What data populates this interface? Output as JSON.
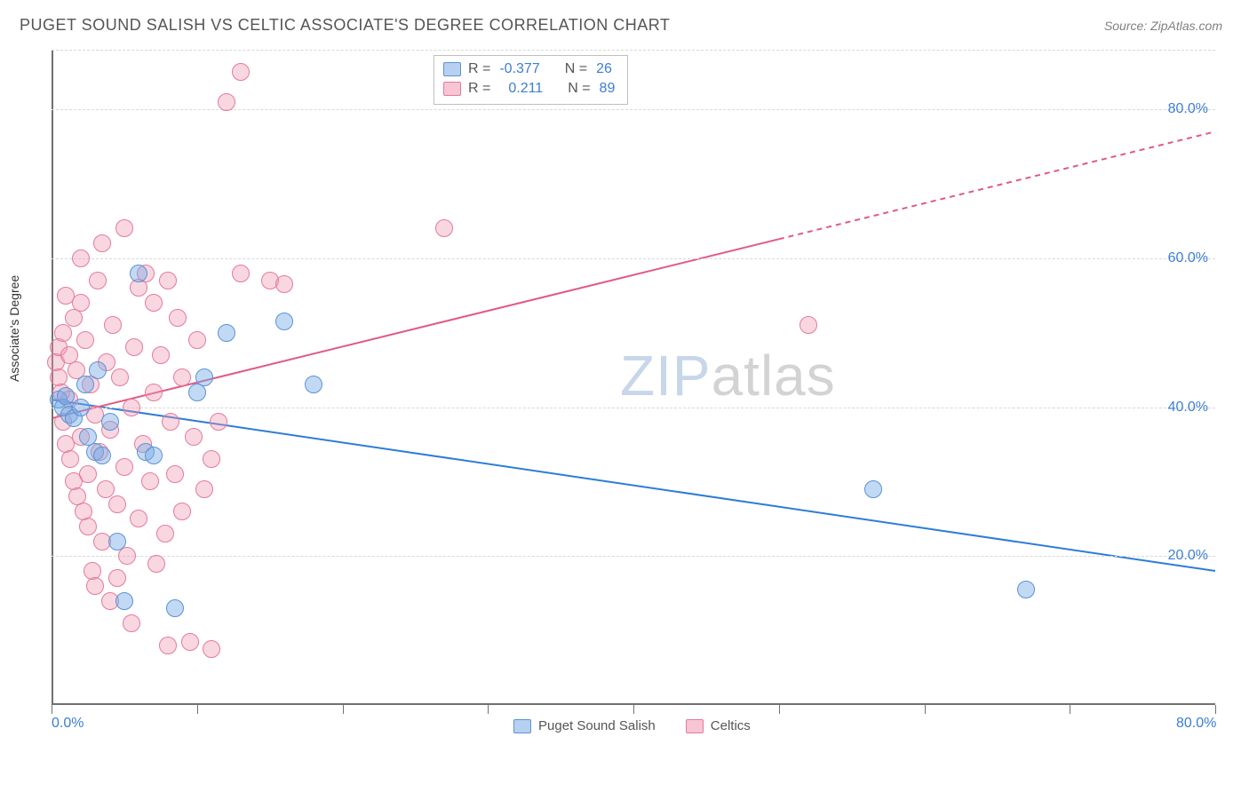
{
  "header": {
    "title": "PUGET SOUND SALISH VS CELTIC ASSOCIATE'S DEGREE CORRELATION CHART",
    "source": "Source: ZipAtlas.com"
  },
  "chart": {
    "type": "scatter",
    "ylabel": "Associate's Degree",
    "background_color": "#ffffff",
    "grid_color": "#d8d8d8",
    "axis_color": "#707070",
    "tick_label_color": "#3b7dd8",
    "xlim": [
      0,
      80
    ],
    "ylim": [
      0,
      88
    ],
    "x_ticks": [
      0,
      10,
      20,
      30,
      40,
      50,
      60,
      70,
      80
    ],
    "x_tick_labels": {
      "0": "0.0%",
      "80": "80.0%"
    },
    "y_grid_at": [
      20,
      40,
      60,
      80,
      88
    ],
    "y_tick_labels": {
      "20": "20.0%",
      "40": "40.0%",
      "60": "60.0%",
      "80": "80.0%"
    },
    "marker_radius": 10,
    "watermark": {
      "zip": "ZIP",
      "atlas": "atlas"
    },
    "series": {
      "blue": {
        "name": "Puget Sound Salish",
        "fill": "rgba(120,170,230,0.45)",
        "stroke": "#5a93d6",
        "R": "-0.377",
        "N": "26",
        "points": [
          [
            0.5,
            41
          ],
          [
            0.8,
            40
          ],
          [
            1.0,
            41.5
          ],
          [
            1.2,
            39
          ],
          [
            1.5,
            38.5
          ],
          [
            2.0,
            40
          ],
          [
            2.3,
            43
          ],
          [
            2.5,
            36
          ],
          [
            3.0,
            34
          ],
          [
            3.2,
            45
          ],
          [
            3.5,
            33.5
          ],
          [
            4.0,
            38
          ],
          [
            4.5,
            22
          ],
          [
            5.0,
            14
          ],
          [
            6.0,
            58
          ],
          [
            6.5,
            34
          ],
          [
            7.0,
            33.5
          ],
          [
            8.5,
            13
          ],
          [
            10.0,
            42
          ],
          [
            10.5,
            44
          ],
          [
            12.0,
            50
          ],
          [
            16.0,
            51.5
          ],
          [
            18.0,
            43
          ],
          [
            56.5,
            29
          ],
          [
            67.0,
            15.5
          ]
        ],
        "trend": {
          "x1": 0,
          "y1": 41,
          "x2": 80,
          "y2": 18,
          "color": "#2e7cd6",
          "width": 2,
          "dash": false
        }
      },
      "pink": {
        "name": "Celtics",
        "fill": "rgba(240,150,175,0.38)",
        "stroke": "#e57a9b",
        "R": "0.211",
        "N": "89",
        "points": [
          [
            0.3,
            46
          ],
          [
            0.5,
            48
          ],
          [
            0.5,
            44
          ],
          [
            0.7,
            42
          ],
          [
            0.8,
            50
          ],
          [
            0.8,
            38
          ],
          [
            1.0,
            55
          ],
          [
            1.0,
            35
          ],
          [
            1.2,
            47
          ],
          [
            1.2,
            41
          ],
          [
            1.3,
            33
          ],
          [
            1.5,
            52
          ],
          [
            1.5,
            30
          ],
          [
            1.7,
            45
          ],
          [
            1.8,
            28
          ],
          [
            2.0,
            54
          ],
          [
            2.0,
            36
          ],
          [
            2.0,
            60
          ],
          [
            2.2,
            26
          ],
          [
            2.3,
            49
          ],
          [
            2.5,
            24
          ],
          [
            2.5,
            31
          ],
          [
            2.7,
            43
          ],
          [
            2.8,
            18
          ],
          [
            3.0,
            16
          ],
          [
            3.0,
            39
          ],
          [
            3.2,
            57
          ],
          [
            3.3,
            34
          ],
          [
            3.5,
            22
          ],
          [
            3.5,
            62
          ],
          [
            3.7,
            29
          ],
          [
            3.8,
            46
          ],
          [
            4.0,
            37
          ],
          [
            4.0,
            14
          ],
          [
            4.2,
            51
          ],
          [
            4.5,
            27
          ],
          [
            4.5,
            17
          ],
          [
            4.7,
            44
          ],
          [
            5.0,
            64
          ],
          [
            5.0,
            32
          ],
          [
            5.2,
            20
          ],
          [
            5.5,
            11
          ],
          [
            5.5,
            40
          ],
          [
            5.7,
            48
          ],
          [
            6.0,
            56
          ],
          [
            6.0,
            25
          ],
          [
            6.3,
            35
          ],
          [
            6.5,
            58
          ],
          [
            6.8,
            30
          ],
          [
            7.0,
            54
          ],
          [
            7.0,
            42
          ],
          [
            7.2,
            19
          ],
          [
            7.5,
            47
          ],
          [
            7.8,
            23
          ],
          [
            8.0,
            57
          ],
          [
            8.0,
            8
          ],
          [
            8.2,
            38
          ],
          [
            8.5,
            31
          ],
          [
            8.7,
            52
          ],
          [
            9.0,
            44
          ],
          [
            9.0,
            26
          ],
          [
            9.5,
            8.5
          ],
          [
            9.8,
            36
          ],
          [
            10.0,
            49
          ],
          [
            10.5,
            29
          ],
          [
            11.0,
            33
          ],
          [
            11.0,
            7.5
          ],
          [
            11.5,
            38
          ],
          [
            12.0,
            81
          ],
          [
            13.0,
            85
          ],
          [
            13.0,
            58
          ],
          [
            15.0,
            57
          ],
          [
            16.0,
            56.5
          ],
          [
            27.0,
            64
          ],
          [
            52.0,
            51
          ]
        ],
        "trend": {
          "x1": 0,
          "y1": 38.5,
          "x2": 80,
          "y2": 77,
          "color": "#e05a85",
          "width": 2,
          "dash_after_x": 50
        }
      }
    },
    "legend_top": {
      "rows": [
        {
          "swatch": "blue",
          "r_lbl": "R =",
          "r_val": "-0.377",
          "n_lbl": "N =",
          "n_val": "26"
        },
        {
          "swatch": "pink",
          "r_lbl": "R =",
          "r_val": "0.211",
          "n_lbl": "N =",
          "n_val": "89"
        }
      ]
    },
    "legend_bottom": [
      {
        "swatch": "blue",
        "label": "Puget Sound Salish"
      },
      {
        "swatch": "pink",
        "label": "Celtics"
      }
    ]
  }
}
